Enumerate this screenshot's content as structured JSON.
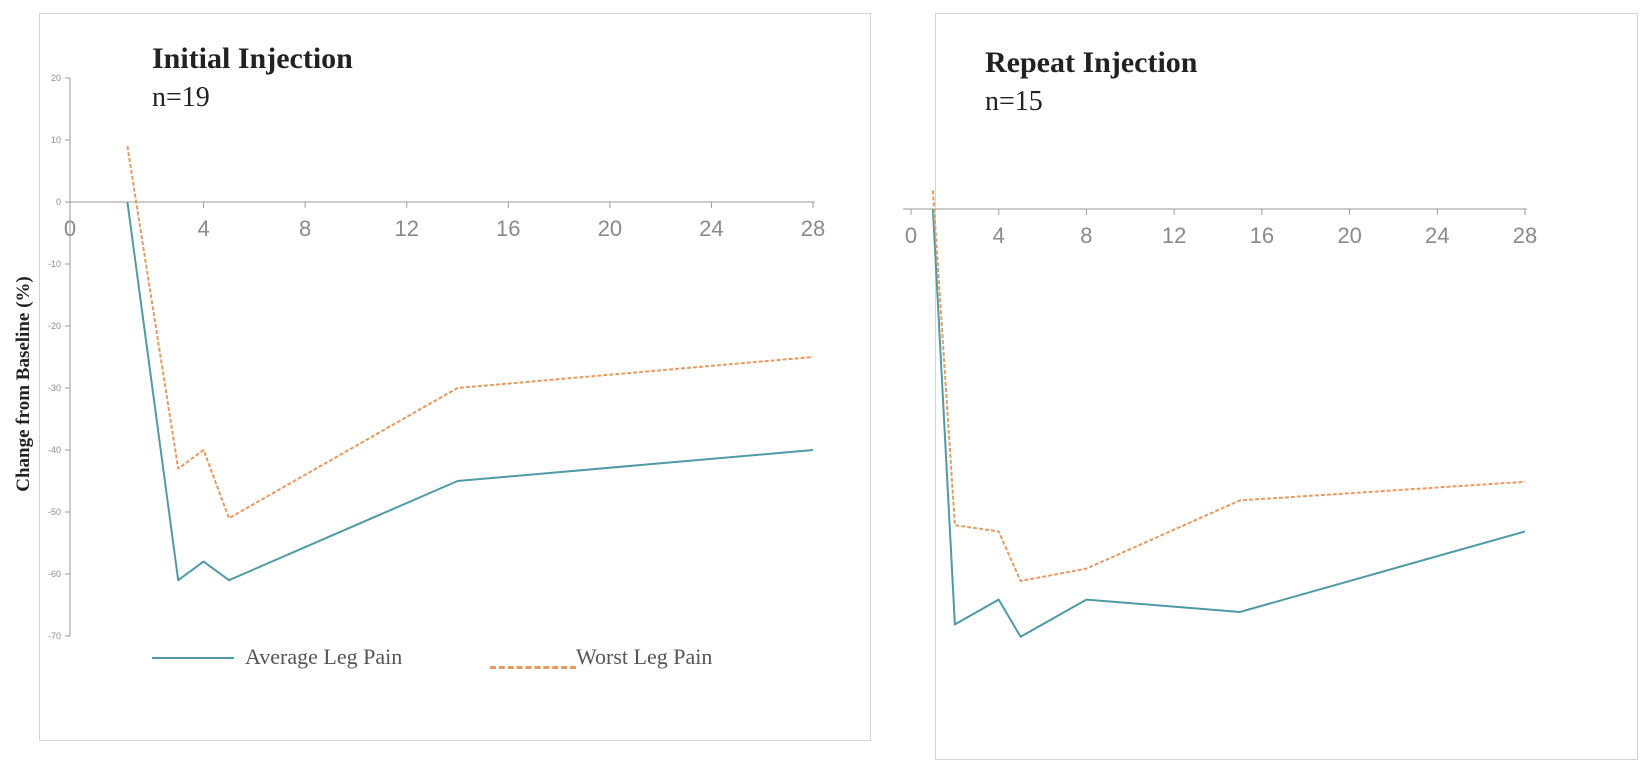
{
  "ylabel": "Change from Baseline (%)",
  "legend": {
    "average": "Average Leg Pain",
    "worst": "Worst Leg Pain"
  },
  "colors": {
    "average": "#4f9aa3",
    "worst": "#e39a63",
    "axis": "#9a9a9a",
    "tick_text": "#8a8a8a"
  },
  "panels": [
    {
      "title": "Initial Injection",
      "subtitle": "n=19"
    },
    {
      "title": "Repeat Injection",
      "subtitle": "n=15"
    }
  ],
  "chart_data": [
    {
      "type": "line",
      "title": "Initial Injection",
      "subtitle": "n=19",
      "ylabel": "Change from Baseline (%)",
      "xlabel": "",
      "xlim": [
        0,
        28
      ],
      "ylim": [
        -70,
        20
      ],
      "x_ticks": [
        0,
        4,
        8,
        12,
        16,
        20,
        24,
        28
      ],
      "y_ticks": [
        20,
        10,
        0,
        -10,
        -20,
        -30,
        -40,
        -50,
        -60,
        -70
      ],
      "series": [
        {
          "name": "Average Leg Pain",
          "style": "solid",
          "x": [
            1,
            3,
            4,
            5,
            14,
            28
          ],
          "y": [
            0,
            -61,
            -58,
            -61,
            -45,
            -40
          ]
        },
        {
          "name": "Worst Leg Pain",
          "style": "dashed",
          "x": [
            1,
            3,
            4,
            5,
            14,
            28
          ],
          "y": [
            9,
            -43,
            -40,
            -51,
            -30,
            -25
          ]
        }
      ]
    },
    {
      "type": "line",
      "title": "Repeat Injection",
      "subtitle": "n=15",
      "xlabel": "",
      "xlim": [
        0,
        28
      ],
      "ylim": [
        -70,
        20
      ],
      "x_ticks": [
        0,
        4,
        8,
        12,
        16,
        20,
        24,
        28
      ],
      "series": [
        {
          "name": "Average Leg Pain",
          "style": "solid",
          "x": [
            1,
            2,
            4,
            5,
            8,
            15,
            28
          ],
          "y": [
            0,
            -67,
            -63,
            -69,
            -63,
            -65,
            -52
          ]
        },
        {
          "name": "Worst Leg Pain",
          "style": "dashed",
          "x": [
            1,
            2,
            4,
            5,
            8,
            15,
            28
          ],
          "y": [
            3,
            -51,
            -52,
            -60,
            -58,
            -47,
            -44
          ]
        }
      ]
    }
  ]
}
